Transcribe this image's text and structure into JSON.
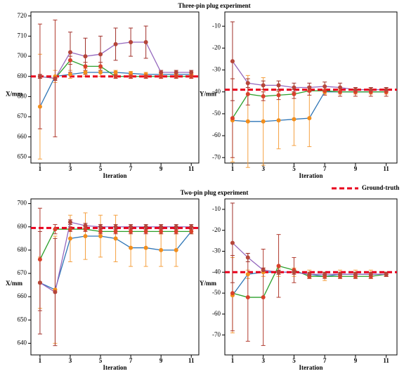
{
  "chart_data": [
    {
      "type": "line",
      "title": "Three-pin plug experiment",
      "xlabel": "Iteration",
      "ylabel": "X/mm",
      "x": [
        1,
        2,
        3,
        4,
        5,
        6,
        7,
        8,
        9,
        10,
        11
      ],
      "xlim": [
        0.4,
        11.5
      ],
      "xticks": [
        1,
        3,
        5,
        7,
        9,
        11
      ],
      "ylim": [
        647,
        722
      ],
      "yticks": [
        650,
        660,
        670,
        680,
        690,
        700,
        710,
        720
      ],
      "reference_line": {
        "value": 690
      },
      "series": [
        {
          "color": "#2e75b6",
          "marker_color": "#f28e1c",
          "error_color": "#f5a040",
          "values": [
            675,
            690,
            691,
            692,
            692,
            692,
            691.5,
            691,
            691,
            691,
            691
          ],
          "errors": [
            26,
            3,
            2,
            2,
            2,
            1,
            1,
            1,
            1,
            1,
            1
          ]
        },
        {
          "color": "#2ca02c",
          "marker_color": "#d9412b",
          "error_color": "#b03a2e",
          "values": [
            690,
            689,
            698,
            695,
            695,
            690,
            690,
            690,
            690,
            690,
            690
          ],
          "errors": [
            26,
            29,
            2,
            2,
            2,
            1,
            1,
            1,
            1,
            1,
            1
          ]
        },
        {
          "color": "#9467bd",
          "marker_color": "#b5453a",
          "error_color": "#a0302a",
          "values": [
            690,
            689,
            702,
            700,
            701,
            706,
            707,
            707,
            692,
            692,
            692
          ],
          "errors": [
            1,
            1,
            10,
            9,
            9,
            8,
            7,
            8,
            1,
            1,
            1
          ]
        }
      ]
    },
    {
      "type": "line",
      "xlabel": "Iteration",
      "ylabel": "Y/mm",
      "x": [
        1,
        2,
        3,
        4,
        5,
        6,
        7,
        8,
        9,
        10,
        11
      ],
      "xlim": [
        0.5,
        11.7
      ],
      "xticks": [
        1,
        3,
        5,
        7,
        9,
        11
      ],
      "ylim": [
        -72.5,
        -3.5
      ],
      "yticks": [
        -70,
        -60,
        -50,
        -40,
        -30,
        -20,
        -10
      ],
      "reference_line": {
        "value": -39
      },
      "series": [
        {
          "color": "#2e75b6",
          "marker_color": "#f28e1c",
          "error_color": "#f5a040",
          "values": [
            -53,
            -53.5,
            -53.5,
            -53,
            -52.5,
            -52,
            -40,
            -40,
            -40,
            -40,
            -40
          ],
          "errors": [
            19,
            21,
            20,
            13,
            12,
            13,
            1,
            1,
            1,
            1,
            1
          ]
        },
        {
          "color": "#2ca02c",
          "marker_color": "#d9412b",
          "error_color": "#b03a2e",
          "values": [
            -52,
            -41,
            -42,
            -41.5,
            -41,
            -39.5,
            -39.5,
            -40,
            -40,
            -40,
            -40
          ],
          "errors": [
            18,
            5,
            2,
            2,
            2,
            2,
            2,
            2,
            2,
            2,
            2
          ]
        },
        {
          "color": "#9467bd",
          "marker_color": "#b5453a",
          "error_color": "#a0302a",
          "values": [
            -26,
            -36,
            -37,
            -37,
            -38,
            -38,
            -37.5,
            -38,
            -39,
            -39,
            -39
          ],
          "errors": [
            18,
            2,
            2,
            2,
            2,
            2,
            2,
            2,
            1,
            1,
            1
          ]
        }
      ]
    },
    {
      "type": "line",
      "title": "Two-pin plug experiment",
      "xlabel": "Iteration",
      "ylabel": "X/mm",
      "x": [
        1,
        2,
        3,
        4,
        5,
        6,
        7,
        8,
        9,
        10,
        11
      ],
      "xlim": [
        0.4,
        11.5
      ],
      "xticks": [
        1,
        3,
        5,
        7,
        9,
        11
      ],
      "ylim": [
        635,
        702
      ],
      "yticks": [
        640,
        650,
        660,
        670,
        680,
        690,
        700
      ],
      "reference_line": {
        "value": 689.5,
        "name": "Ground-truth"
      },
      "series": [
        {
          "color": "#2e75b6",
          "marker_color": "#f28e1c",
          "error_color": "#f5a040",
          "values": [
            666,
            663,
            685,
            686,
            686,
            685,
            681,
            681,
            680,
            680,
            688
          ],
          "errors": [
            11,
            23,
            10,
            10,
            9,
            10,
            8,
            8,
            7,
            7,
            1
          ]
        },
        {
          "color": "#2ca02c",
          "marker_color": "#d9412b",
          "error_color": "#b03a2e",
          "values": [
            676,
            689,
            689,
            689,
            688,
            688,
            688,
            688,
            688,
            688,
            688
          ],
          "errors": [
            22,
            2,
            1,
            1,
            1,
            1,
            1,
            1,
            1,
            1,
            1
          ]
        },
        {
          "color": "#9467bd",
          "marker_color": "#b5453a",
          "error_color": "#a0302a",
          "values": [
            666,
            662,
            692,
            690.5,
            690,
            690,
            690,
            690,
            690,
            690,
            690
          ],
          "errors": [
            22,
            23,
            1,
            1,
            1,
            1,
            1,
            1,
            1,
            1,
            1
          ]
        }
      ]
    },
    {
      "type": "line",
      "xlabel": "Iteration",
      "ylabel": "Y/mm",
      "x": [
        1,
        2,
        3,
        4,
        5,
        6,
        7,
        8,
        9,
        10,
        11
      ],
      "xlim": [
        0.5,
        11.7
      ],
      "xticks": [
        1,
        3,
        5,
        7,
        9,
        11
      ],
      "ylim": [
        -79.5,
        -5
      ],
      "yticks": [
        -70,
        -60,
        -50,
        -40,
        -30,
        -20,
        -10
      ],
      "reference_line": {
        "value": -40
      },
      "series": [
        {
          "color": "#2e75b6",
          "marker_color": "#f28e1c",
          "error_color": "#f5a040",
          "values": [
            -51,
            -41,
            -40,
            -40,
            -40,
            -41,
            -42,
            -41,
            -41,
            -41,
            -41
          ],
          "errors": [
            18,
            2,
            2,
            2,
            2,
            2,
            2,
            2,
            2,
            2,
            1
          ]
        },
        {
          "color": "#2ca02c",
          "marker_color": "#d9412b",
          "error_color": "#b03a2e",
          "values": [
            -50,
            -52,
            -52,
            -37,
            -39,
            -42,
            -42,
            -42,
            -42,
            -42,
            -41
          ],
          "errors": [
            18,
            21,
            23,
            15,
            6,
            1,
            1,
            1,
            1,
            1,
            1
          ]
        },
        {
          "color": "#9467bd",
          "marker_color": "#b5453a",
          "error_color": "#a0302a",
          "values": [
            -26,
            -33,
            -39,
            -40,
            -40,
            -41,
            -41,
            -41,
            -41,
            -41,
            -41
          ],
          "errors": [
            19,
            2,
            1,
            1,
            1,
            1,
            1,
            1,
            1,
            1,
            1
          ]
        }
      ]
    }
  ]
}
